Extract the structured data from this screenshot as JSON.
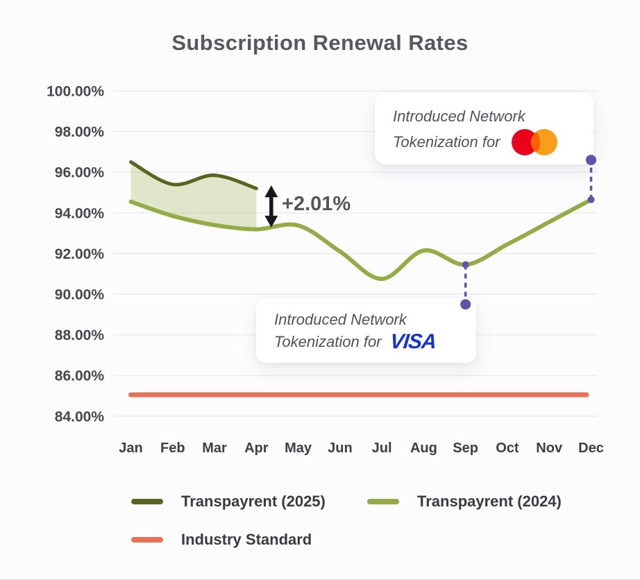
{
  "title": "Subscription Renewal Rates",
  "chart_data": {
    "type": "line",
    "title": "Subscription Renewal Rates",
    "x_labels": [
      "Jan",
      "Feb",
      "Mar",
      "Apr",
      "May",
      "Jun",
      "Jul",
      "Aug",
      "Sep",
      "Oct",
      "Nov",
      "Dec"
    ],
    "ylim": [
      84,
      100
    ],
    "y_ticks": [
      100,
      98,
      96,
      94,
      92,
      90,
      88,
      86,
      84
    ],
    "y_tick_labels": [
      "100.00%",
      "98.00%",
      "96.00%",
      "94.00%",
      "92.00%",
      "90.00%",
      "88.00%",
      "86.00%",
      "84.00%"
    ],
    "grid_color": "#e7e7eb",
    "legend_position": "bottom",
    "series": [
      {
        "name": "Transpayrent (2025)",
        "color": "#5a6420",
        "line_width": 5,
        "values": [
          96.5,
          95.4,
          95.85,
          95.2
        ]
      },
      {
        "name": "Transpayrent (2024)",
        "color": "#94ac48",
        "line_width": 6,
        "values": [
          94.55,
          93.85,
          93.4,
          93.19,
          93.38,
          92.1,
          90.75,
          92.15,
          91.45,
          92.45,
          93.55,
          94.65
        ]
      },
      {
        "name": "Industry Standard",
        "color": "#e7725c",
        "line_width": 7,
        "constant": 85.05
      }
    ],
    "fill_between": {
      "series_a": 0,
      "series_b": 1,
      "month_start": 0,
      "month_end": 3,
      "color": "#94ac48",
      "opacity": 0.28
    }
  },
  "annotations": {
    "delta": {
      "label": "+2.01%",
      "month": "Apr",
      "from_value": 93.28,
      "to_value": 95.35,
      "arrow_color": "#17171a"
    },
    "marker_color": "#5b55a8",
    "markers": [
      {
        "month": "Sep",
        "line_value": 91.45,
        "dot_value": 89.5
      },
      {
        "month": "Dec",
        "line_value": 94.65,
        "dot_value": 96.6
      }
    ],
    "mastercard_card": {
      "line1": "Introduced Network",
      "line2": "Tokenization for",
      "logo": "mastercard",
      "logo_colors": {
        "red": "#eb001b",
        "orange": "#f79e1b",
        "overlap": "#ff5f00"
      }
    },
    "visa_card": {
      "line1": "Introduced Network",
      "line2": "Tokenization for",
      "logo_text": "VISA",
      "logo_color": "#1434cb"
    }
  },
  "legend": [
    {
      "label": "Transpayrent (2025)",
      "color": "#5a6420"
    },
    {
      "label": "Transpayrent (2024)",
      "color": "#94ac48"
    },
    {
      "label": "Industry Standard",
      "color": "#e7725c"
    }
  ]
}
